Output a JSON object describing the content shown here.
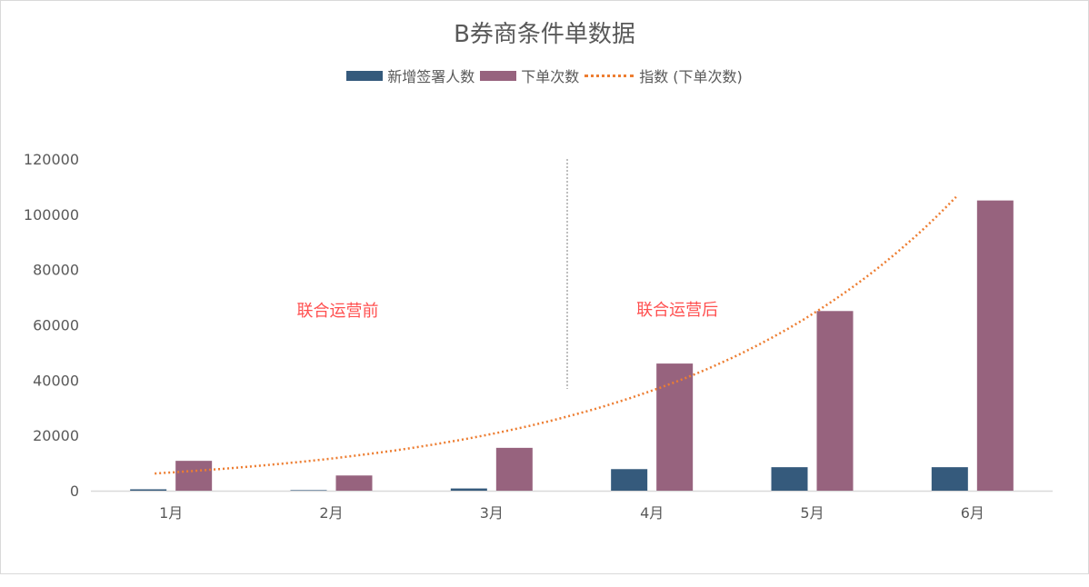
{
  "chart_data": {
    "type": "bar",
    "title": "B券商条件单数据",
    "categories": [
      "1月",
      "2月",
      "3月",
      "4月",
      "5月",
      "6月"
    ],
    "series": [
      {
        "name": "新增签署人数",
        "color": "#355a7c",
        "values": [
          500,
          200,
          800,
          7800,
          8500,
          8500
        ]
      },
      {
        "name": "下单次数",
        "color": "#97637e",
        "values": [
          10800,
          5500,
          15500,
          46000,
          65000,
          105000
        ]
      }
    ],
    "trendline": {
      "name": "指数 (下单次数)",
      "color": "#ed7d31",
      "type": "exponential",
      "series": "下单次数"
    },
    "ylim": [
      0,
      120000
    ],
    "yticks": [
      "120000",
      "100000",
      "80000",
      "60000",
      "40000",
      "20000",
      "0"
    ],
    "annotations": [
      "联合运营前",
      "联合运营后"
    ],
    "grid": false,
    "legend": "top"
  }
}
